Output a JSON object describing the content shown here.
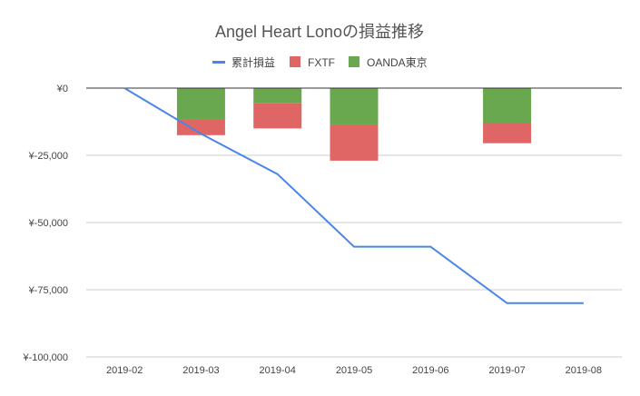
{
  "chart_data": {
    "type": "bar",
    "title": "Angel Heart Lonoの損益推移",
    "categories": [
      "2019-02",
      "2019-03",
      "2019-04",
      "2019-05",
      "2019-06",
      "2019-07",
      "2019-08"
    ],
    "y_ticks": [
      "¥0",
      "¥-25,000",
      "¥-50,000",
      "¥-75,000",
      "¥-100,000"
    ],
    "y_tick_values": [
      0,
      -25000,
      -50000,
      -75000,
      -100000
    ],
    "ylim": [
      -100000,
      0
    ],
    "grid": true,
    "legend_position": "top",
    "series": [
      {
        "name": "累計損益",
        "kind": "line",
        "color": "#4a86e8",
        "values": [
          0,
          -17000,
          -32000,
          -59000,
          -59000,
          -80000,
          -80000
        ]
      },
      {
        "name": "FXTF",
        "kind": "bar",
        "color": "#e06666",
        "values": [
          0,
          -6000,
          -9500,
          -13500,
          0,
          -7500,
          0
        ]
      },
      {
        "name": "OANDA東京",
        "kind": "bar",
        "color": "#6aa84f",
        "values": [
          0,
          -11500,
          -5500,
          -13500,
          0,
          -13000,
          0
        ]
      }
    ]
  }
}
